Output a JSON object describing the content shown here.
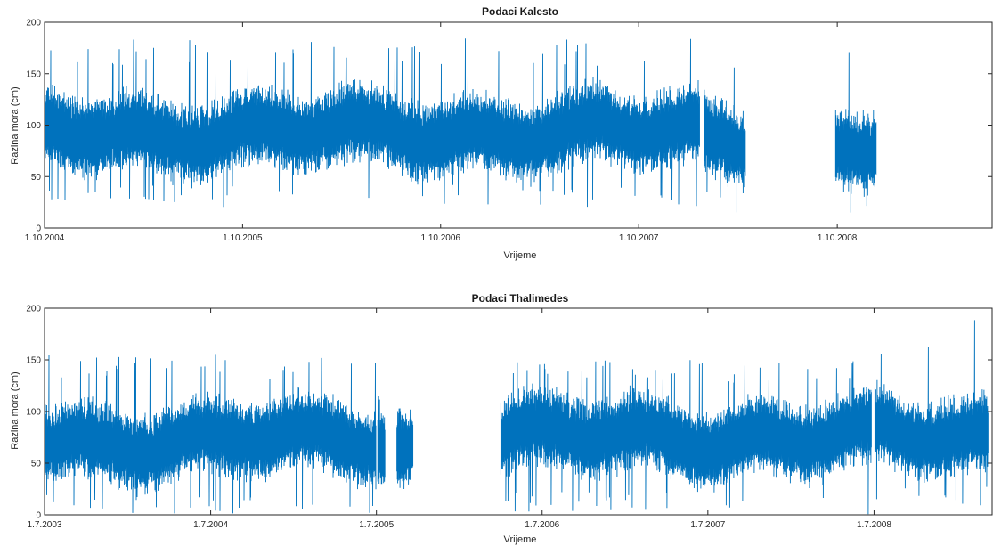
{
  "chart_data": [
    {
      "type": "line",
      "title": "Podaci Kalesto",
      "xlabel": "Vrijeme",
      "ylabel": "Razina mora (cm)",
      "ylim": [
        0,
        200
      ],
      "yticks": [
        0,
        50,
        100,
        150,
        200
      ],
      "xlim": [
        "2004-10-01",
        "2009-07-15"
      ],
      "xticks": [
        {
          "label": "1.10.2004",
          "date": "2004-10-01"
        },
        {
          "label": "1.10.2005",
          "date": "2005-10-01"
        },
        {
          "label": "1.10.2006",
          "date": "2006-10-01"
        },
        {
          "label": "1.10.2007",
          "date": "2007-10-01"
        },
        {
          "label": "1.10.2008",
          "date": "2008-10-01"
        }
      ],
      "color": "#0072bd",
      "grid": false,
      "series": [
        {
          "segments": [
            {
              "start": "2004-10-01",
              "end": "2008-01-22",
              "mean": 93,
              "range": [
                20,
                185
              ]
            },
            {
              "start": "2008-01-30",
              "end": "2008-04-15",
              "mean": 85,
              "range": [
                15,
                172
              ]
            },
            {
              "start": "2008-09-28",
              "end": "2008-12-12",
              "mean": 80,
              "range": [
                13,
                195
              ]
            }
          ]
        }
      ]
    },
    {
      "type": "line",
      "title": "Podaci Thalimedes",
      "xlabel": "Vrijeme",
      "ylabel": "Razina mora (cm)",
      "ylim": [
        0,
        200
      ],
      "yticks": [
        0,
        50,
        100,
        150,
        200
      ],
      "xlim": [
        "2003-07-01",
        "2009-03-20"
      ],
      "xticks": [
        {
          "label": "1.7.2003",
          "date": "2003-07-01"
        },
        {
          "label": "1.7.2004",
          "date": "2004-07-01"
        },
        {
          "label": "1.7.2005",
          "date": "2005-07-01"
        },
        {
          "label": "1.7.2006",
          "date": "2006-07-01"
        },
        {
          "label": "1.7.2007",
          "date": "2007-07-01"
        },
        {
          "label": "1.7.2008",
          "date": "2008-07-01"
        }
      ],
      "color": "#0072bd",
      "grid": false,
      "series": [
        {
          "segments": [
            {
              "start": "2003-07-01",
              "end": "2005-06-30",
              "mean": 72,
              "range": [
                0,
                155
              ]
            },
            {
              "start": "2005-07-04",
              "end": "2005-07-20",
              "mean": 70,
              "range": [
                30,
                115
              ]
            },
            {
              "start": "2005-08-15",
              "end": "2005-09-20",
              "mean": 65,
              "range": [
                25,
                110
              ]
            },
            {
              "start": "2006-04-01",
              "end": "2008-06-25",
              "mean": 75,
              "range": [
                0,
                150
              ]
            },
            {
              "start": "2008-07-03",
              "end": "2009-03-10",
              "mean": 75,
              "range": [
                8,
                190
              ]
            }
          ]
        }
      ]
    }
  ]
}
